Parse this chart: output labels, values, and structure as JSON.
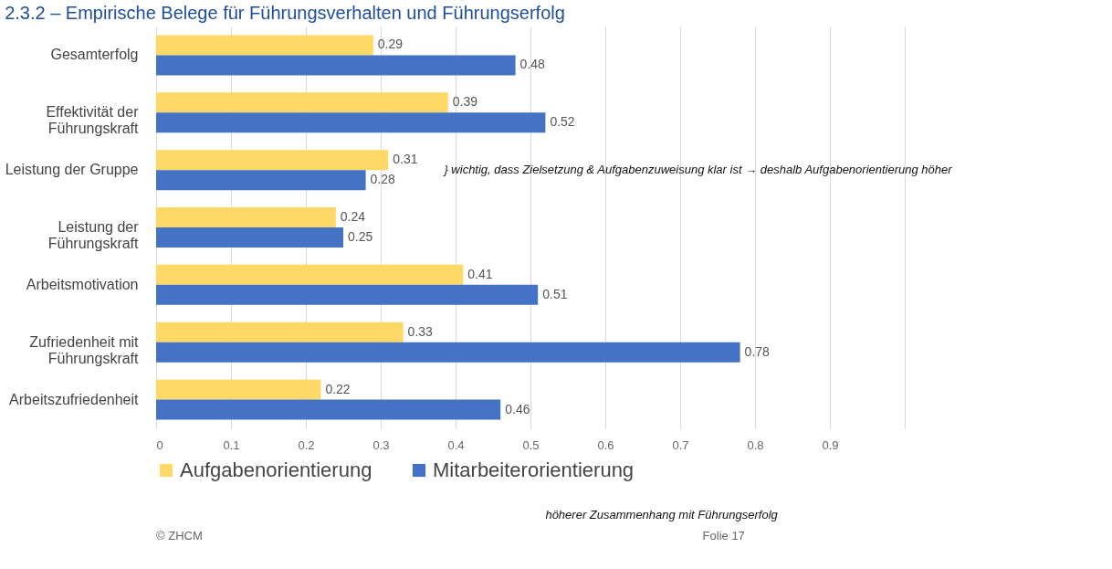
{
  "chart_data": {
    "type": "bar",
    "orientation": "horizontal",
    "title": "2.3.2 – Empirische Belege für Führungsverhalten und Führungserfolg",
    "categories": [
      "Gesamterfolg",
      "Effektivität der\nFührungskraft",
      "Leistung der Gruppe",
      "Leistung der\nFührungskraft",
      "Arbeitsmotivation",
      "Zufriedenheit mit\nFührungskraft",
      "Arbeitszufriedenheit"
    ],
    "series": [
      {
        "name": "Aufgabenorientierung",
        "color": "#ffd966",
        "values": [
          0.29,
          0.39,
          0.31,
          0.24,
          0.41,
          0.33,
          0.22
        ]
      },
      {
        "name": "Mitarbeiterorientierung",
        "color": "#4472c4",
        "values": [
          0.48,
          0.52,
          0.28,
          0.25,
          0.51,
          0.78,
          0.46
        ]
      }
    ],
    "xlim": [
      0,
      1
    ],
    "xticks": [
      0,
      0.1,
      0.2,
      0.3,
      0.4,
      0.5,
      0.6,
      0.7,
      0.8,
      0.9,
      {
        "value": 1,
        "label": null
      }
    ],
    "grid": "x",
    "legend": "bottom",
    "data_labels": true,
    "annotations": [
      "} wichtig, dass Zielsetzung & Aufgabenzuweisung klar ist → deshalb Aufgabenorientierung höher",
      "höherer Zusammenhang mit Führungserfolg",
      "© ZHCM",
      "Folie 17"
    ]
  }
}
